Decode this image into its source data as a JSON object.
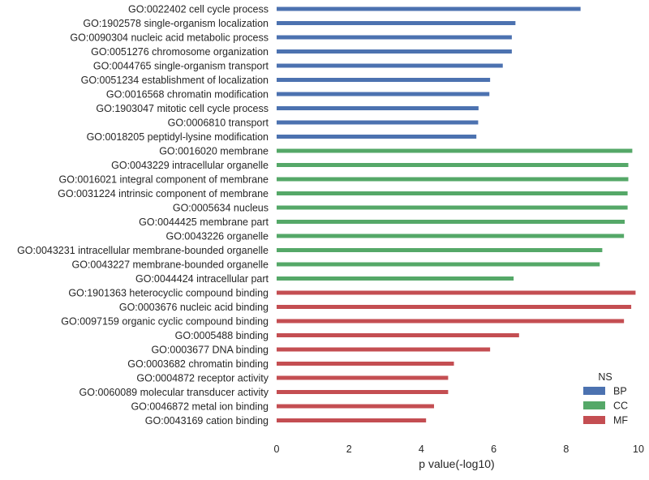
{
  "chart_data": {
    "type": "bar",
    "orientation": "horizontal",
    "xlabel": "p value(-log10)",
    "ylabel": "",
    "xlim": [
      0,
      10
    ],
    "xticks": [
      "0",
      "2",
      "4",
      "6",
      "8",
      "10"
    ],
    "grid": false,
    "legend": {
      "title": "NS",
      "position": "bottom-right",
      "entries": [
        {
          "label": "BP",
          "color": "#4c72b0"
        },
        {
          "label": "CC",
          "color": "#55a868"
        },
        {
          "label": "MF",
          "color": "#c44e52"
        }
      ]
    },
    "categories": [
      "GO:0022402 cell cycle process",
      "GO:1902578 single-organism localization",
      "GO:0090304 nucleic acid metabolic process",
      "GO:0051276 chromosome organization",
      "GO:0044765 single-organism transport",
      "GO:0051234 establishment of localization",
      "GO:0016568 chromatin modification",
      "GO:1903047 mitotic cell cycle process",
      "GO:0006810 transport",
      "GO:0018205 peptidyl-lysine modification",
      "GO:0016020 membrane",
      "GO:0043229 intracellular organelle",
      "GO:0016021 integral component of membrane",
      "GO:0031224 intrinsic component of membrane",
      "GO:0005634 nucleus",
      "GO:0044425 membrane part",
      "GO:0043226 organelle",
      "GO:0043231 intracellular membrane-bounded organelle",
      "GO:0043227 membrane-bounded organelle",
      "GO:0044424 intracellular part",
      "GO:1901363 heterocyclic compound binding",
      "GO:0003676 nucleic acid binding",
      "GO:0097159 organic cyclic compound binding",
      "GO:0005488 binding",
      "GO:0003677 DNA binding",
      "GO:0003682 chromatin binding",
      "GO:0004872 receptor activity",
      "GO:0060089 molecular transducer activity",
      "GO:0046872 metal ion binding",
      "GO:0043169 cation binding"
    ],
    "values": [
      8.4,
      6.6,
      6.5,
      6.5,
      6.25,
      5.9,
      5.88,
      5.58,
      5.57,
      5.52,
      9.83,
      9.72,
      9.72,
      9.7,
      9.7,
      9.62,
      9.6,
      9.0,
      8.93,
      6.55,
      9.92,
      9.8,
      9.6,
      6.7,
      5.9,
      4.9,
      4.74,
      4.74,
      4.35,
      4.13
    ],
    "groups": [
      "BP",
      "BP",
      "BP",
      "BP",
      "BP",
      "BP",
      "BP",
      "BP",
      "BP",
      "BP",
      "CC",
      "CC",
      "CC",
      "CC",
      "CC",
      "CC",
      "CC",
      "CC",
      "CC",
      "CC",
      "MF",
      "MF",
      "MF",
      "MF",
      "MF",
      "MF",
      "MF",
      "MF",
      "MF",
      "MF"
    ]
  }
}
